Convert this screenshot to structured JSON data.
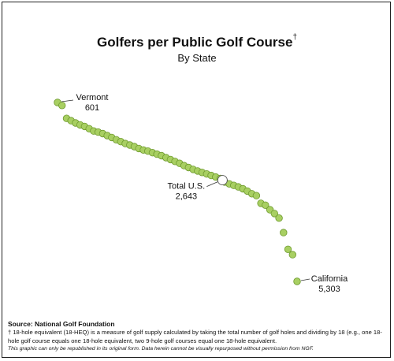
{
  "chart_data": {
    "type": "scatter",
    "title": "Golfers per Public Golf Course",
    "title_mark": "†",
    "subtitle": "By State",
    "xlabel": "",
    "ylabel": "",
    "grid": false,
    "marker_color": "#a8cf62",
    "marker_edge": "#6e9a2e",
    "highlight_color": "#ffffff",
    "values": [
      601,
      680,
      1020,
      1080,
      1140,
      1190,
      1230,
      1290,
      1350,
      1380,
      1420,
      1470,
      1520,
      1580,
      1630,
      1680,
      1720,
      1760,
      1810,
      1850,
      1880,
      1920,
      1960,
      2000,
      2050,
      2100,
      2150,
      2200,
      2260,
      2310,
      2360,
      2400,
      2440,
      2480,
      2520,
      2560,
      2600,
      2690,
      2740,
      2780,
      2820,
      2870,
      2930,
      3000,
      3050,
      3250,
      3300,
      3420,
      3520,
      3640,
      4020,
      4460,
      4600,
      5303
    ],
    "annotations": [
      {
        "label": "Vermont",
        "value_text": "601",
        "index": 0
      },
      {
        "label": "Total U.S.",
        "value_text": "2,643",
        "value": 2643,
        "between_index": 36
      },
      {
        "label": "California",
        "value_text": "5,303",
        "index": 53
      }
    ]
  },
  "footer": {
    "source": "Source: National Golf Foundation",
    "note": "† 18-hole equivalent (18-HEQ) is a measure of golf supply calculated by taking the total number of golf holes and dividing by 18 (e.g., one 18-hole golf course equals one 18-hole equivalent, two 9-hole golf courses equal one 18-hole equivalent.",
    "disclaimer": "This graphic can only be republished in its original form. Data herein cannot be visually repurposed without permission from NGF."
  }
}
